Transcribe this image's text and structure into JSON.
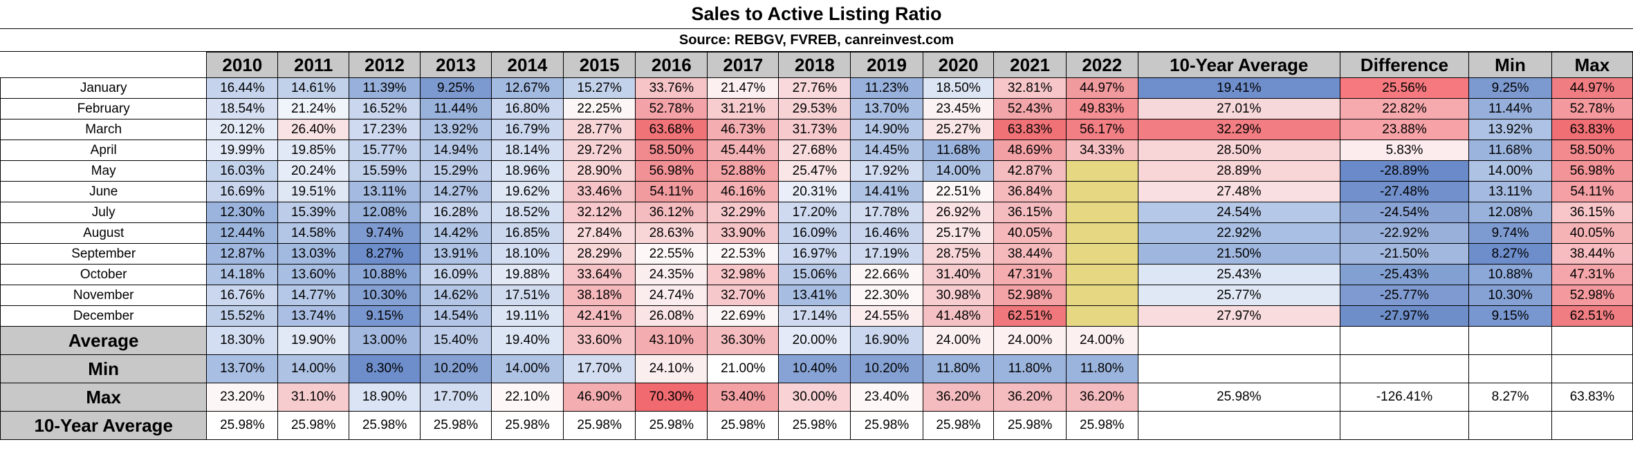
{
  "title": "Sales to Active Listing Ratio",
  "source": "Source: REBGV, FVREB, canreinvest.com",
  "columns": [
    "2010",
    "2011",
    "2012",
    "2013",
    "2014",
    "2015",
    "2016",
    "2017",
    "2018",
    "2019",
    "2020",
    "2021",
    "2022",
    "10-Year Average",
    "Difference",
    "Min",
    "Max"
  ],
  "rows": [
    {
      "label": "January",
      "cells": [
        "16.44%",
        "14.61%",
        "11.39%",
        "9.25%",
        "12.67%",
        "15.27%",
        "33.76%",
        "21.47%",
        "27.76%",
        "11.23%",
        "18.50%",
        "32.81%",
        "44.97%",
        "19.41%",
        "25.56%",
        "9.25%",
        "44.97%"
      ],
      "colors": [
        "#c5d4ec",
        "#c1d1ea",
        "#98b1dc",
        "#7c99d0",
        "#a2b9e0",
        "#c3d2eb",
        "#f6c4c7",
        "#fdf0f1",
        "#f9d9db",
        "#98b1dc",
        "#dce5f4",
        "#f6c6c9",
        "#f19a9e",
        "#6f8ecc",
        "#f5797e",
        "#7c99d0",
        "#f07d82"
      ]
    },
    {
      "label": "February",
      "cells": [
        "18.54%",
        "21.24%",
        "16.52%",
        "11.44%",
        "16.80%",
        "22.25%",
        "52.78%",
        "31.21%",
        "29.53%",
        "13.70%",
        "23.45%",
        "52.43%",
        "49.83%",
        "27.01%",
        "22.82%",
        "11.44%",
        "52.78%"
      ],
      "colors": [
        "#d6e0f2",
        "#f0f4fb",
        "#c9d6ee",
        "#99b2dc",
        "#cad7ee",
        "#fcf6f7",
        "#f3a3a7",
        "#f7cdd0",
        "#f8d3d6",
        "#a8bee2",
        "#fbf2f3",
        "#f3a6aa",
        "#f48f93",
        "#f7d8da",
        "#f7aaae",
        "#96afdb",
        "#f49a9e"
      ]
    },
    {
      "label": "March",
      "cells": [
        "20.12%",
        "26.40%",
        "17.23%",
        "13.92%",
        "16.79%",
        "28.77%",
        "63.68%",
        "46.73%",
        "31.73%",
        "14.90%",
        "25.27%",
        "63.83%",
        "56.17%",
        "32.29%",
        "23.88%",
        "13.92%",
        "63.83%"
      ],
      "colors": [
        "#e6ecf7",
        "#fae3e4",
        "#cfdaf0",
        "#adc2e4",
        "#cad7ee",
        "#f8d6d8",
        "#f07378",
        "#f4aeb1",
        "#f7cbce",
        "#b5c8e7",
        "#fae6e7",
        "#f07276",
        "#f27f84",
        "#f27d82",
        "#f6a2a6",
        "#adc2e4",
        "#f06f74"
      ]
    },
    {
      "label": "April",
      "cells": [
        "19.99%",
        "19.85%",
        "15.77%",
        "14.94%",
        "18.14%",
        "29.72%",
        "58.50%",
        "45.44%",
        "27.68%",
        "14.45%",
        "11.68%",
        "48.69%",
        "34.33%",
        "28.50%",
        "5.83%",
        "11.68%",
        "58.50%"
      ],
      "colors": [
        "#e4eaf7",
        "#e2e9f6",
        "#c2d1eb",
        "#b6c8e7",
        "#d4def2",
        "#f8d3d5",
        "#f18a8e",
        "#f4b3b6",
        "#f9dcde",
        "#b0c4e5",
        "#9bb4dd",
        "#f3a0a4",
        "#f6c0c3",
        "#f8d5d7",
        "#fcecee",
        "#9bb4dd",
        "#f38a8e"
      ]
    },
    {
      "label": "May",
      "cells": [
        "16.03%",
        "20.24%",
        "15.59%",
        "15.29%",
        "18.96%",
        "28.90%",
        "56.98%",
        "52.88%",
        "25.47%",
        "17.92%",
        "14.00%",
        "42.87%",
        "",
        "28.89%",
        "-28.89%",
        "14.00%",
        "56.98%"
      ],
      "colors": [
        "#c4d3ec",
        "#e7edf8",
        "#c0cfea",
        "#bccce9",
        "#dbe4f4",
        "#f8d6d8",
        "#f19195",
        "#f3a2a6",
        "#fae6e7",
        "#d3ddf1",
        "#aec2e4",
        "#f5bcbf",
        "#e6d883",
        "#f8d5d7",
        "#6a8ac9",
        "#aec2e4",
        "#f39598"
      ]
    },
    {
      "label": "June",
      "cells": [
        "16.69%",
        "19.51%",
        "13.11%",
        "14.27%",
        "19.62%",
        "33.46%",
        "54.11%",
        "46.16%",
        "20.31%",
        "14.41%",
        "22.51%",
        "36.84%",
        "",
        "27.48%",
        "-27.48%",
        "13.11%",
        "54.11%"
      ],
      "colors": [
        "#c9d6ee",
        "#dfe7f5",
        "#a4bae0",
        "#b1c4e5",
        "#e0e8f6",
        "#f6c4c7",
        "#f29b9f",
        "#f4b0b3",
        "#e9eef8",
        "#afc3e5",
        "#fdf7f8",
        "#f5b9bc",
        "#e6d883",
        "#f9dfe1",
        "#7190cc",
        "#a4bae0",
        "#f4a0a4"
      ]
    },
    {
      "label": "July",
      "cells": [
        "12.30%",
        "15.39%",
        "12.08%",
        "16.28%",
        "18.52%",
        "32.12%",
        "36.12%",
        "32.29%",
        "17.20%",
        "17.78%",
        "26.92%",
        "36.15%",
        "",
        "24.54%",
        "-24.54%",
        "12.08%",
        "36.15%"
      ],
      "colors": [
        "#9bb4dd",
        "#bdcde9",
        "#99b2dc",
        "#c6d4ed",
        "#d6e0f3",
        "#f7c9cc",
        "#f5bcbf",
        "#f7c9cc",
        "#cfdaf0",
        "#d2dcf1",
        "#fae1e3",
        "#f5bcbf",
        "#e6d883",
        "#b6c8e7",
        "#8aa3d5",
        "#99b2dc",
        "#f8c6c9"
      ]
    },
    {
      "label": "August",
      "cells": [
        "12.44%",
        "14.58%",
        "9.74%",
        "14.42%",
        "16.85%",
        "27.84%",
        "28.63%",
        "33.90%",
        "16.09%",
        "16.46%",
        "25.17%",
        "40.05%",
        "",
        "22.92%",
        "-22.92%",
        "9.74%",
        "40.05%"
      ],
      "colors": [
        "#9cb5dd",
        "#b3c6e6",
        "#7e9bd1",
        "#b0c4e5",
        "#cbd8ee",
        "#f9dadc",
        "#f8d6d8",
        "#f6c3c6",
        "#c5d3ec",
        "#c8d5ed",
        "#fae6e7",
        "#f5b7ba",
        "#e6d883",
        "#a9bfe3",
        "#99b0da",
        "#7e9bd1",
        "#f6b3b6"
      ]
    },
    {
      "label": "September",
      "cells": [
        "12.87%",
        "13.03%",
        "8.27%",
        "13.91%",
        "18.10%",
        "28.29%",
        "22.55%",
        "22.53%",
        "16.97%",
        "17.19%",
        "28.75%",
        "38.44%",
        "",
        "21.50%",
        "-21.50%",
        "8.27%",
        "38.44%"
      ],
      "colors": [
        "#a0b7df",
        "#a2b9e0",
        "#6d8dcb",
        "#adc2e4",
        "#d4def2",
        "#f8d7d9",
        "#fdf7f8",
        "#fdf7f8",
        "#ccd8ef",
        "#cfdaf0",
        "#f8d6d8",
        "#f5b9bc",
        "#e6d883",
        "#9fb6de",
        "#a3b8df",
        "#6d8dcb",
        "#f7bcbf"
      ]
    },
    {
      "label": "October",
      "cells": [
        "14.18%",
        "13.60%",
        "10.88%",
        "16.09%",
        "19.88%",
        "33.64%",
        "24.35%",
        "32.98%",
        "15.06%",
        "22.66%",
        "31.40%",
        "47.31%",
        "",
        "25.43%",
        "-25.43%",
        "10.88%",
        "47.31%"
      ],
      "colors": [
        "#afc3e5",
        "#a8bee2",
        "#8ca8d8",
        "#c5d3ec",
        "#e3eaf6",
        "#f6c4c7",
        "#fbeeef",
        "#f7c7ca",
        "#b8c9e7",
        "#fdf6f7",
        "#f7cccf",
        "#f4acaf",
        "#e6d883",
        "#dde6f5",
        "#82a0d2",
        "#8ca8d8",
        "#f5a6aa"
      ]
    },
    {
      "label": "November",
      "cells": [
        "16.76%",
        "14.77%",
        "10.30%",
        "14.62%",
        "17.51%",
        "38.18%",
        "24.74%",
        "32.70%",
        "13.41%",
        "22.30%",
        "30.98%",
        "52.98%",
        "",
        "25.77%",
        "-25.77%",
        "10.30%",
        "52.98%"
      ],
      "colors": [
        "#cad7ee",
        "#b5c8e7",
        "#86a2d5",
        "#b3c6e6",
        "#d0dbf0",
        "#f5b8bb",
        "#fbecee",
        "#f7c8cb",
        "#a7bde2",
        "#fdf7f8",
        "#f7cdd0",
        "#f3a2a6",
        "#e6d883",
        "#e0e8f6",
        "#7f9ad1",
        "#86a2d5",
        "#f49a9e"
      ]
    },
    {
      "label": "December",
      "cells": [
        "15.52%",
        "13.74%",
        "9.15%",
        "14.54%",
        "19.11%",
        "42.41%",
        "26.08%",
        "22.69%",
        "17.14%",
        "24.55%",
        "41.48%",
        "62.51%",
        "",
        "27.97%",
        "-27.97%",
        "9.15%",
        "62.51%"
      ],
      "colors": [
        "#bfcfea",
        "#aabfe3",
        "#7896cf",
        "#b2c5e6",
        "#dce5f4",
        "#f5bdc0",
        "#fae4e5",
        "#fdf6f7",
        "#cfdaf0",
        "#fbecee",
        "#f5c0c3",
        "#f0787c",
        "#e6d883",
        "#f9dcde",
        "#6e8eca",
        "#7896cf",
        "#f07d82"
      ]
    }
  ],
  "stats": [
    {
      "label": "Average",
      "cells": [
        "18.30%",
        "19.90%",
        "13.00%",
        "15.40%",
        "19.40%",
        "33.60%",
        "43.10%",
        "36.30%",
        "20.00%",
        "16.90%",
        "24.00%",
        "24.00%",
        "24.00%",
        "",
        "",
        "",
        ""
      ],
      "colors": [
        "#d4def2",
        "#e2e9f6",
        "#a3b9e0",
        "#bdcde9",
        "#dde6f5",
        "#f6c4c7",
        "#f3adb0",
        "#f5bcbf",
        "#e4eaf7",
        "#cad7ee",
        "#fcf0f1",
        "#fcf0f1",
        "#fcf0f1",
        "#ffffff",
        "#ffffff",
        "#ffffff",
        "#ffffff"
      ]
    },
    {
      "label": "Min",
      "cells": [
        "13.70%",
        "14.00%",
        "8.30%",
        "10.20%",
        "14.00%",
        "17.70%",
        "24.10%",
        "21.00%",
        "10.40%",
        "10.20%",
        "11.80%",
        "11.80%",
        "11.80%",
        "",
        "",
        "",
        ""
      ],
      "colors": [
        "#a8bee2",
        "#aec2e4",
        "#6d8dcb",
        "#85a1d4",
        "#aec2e4",
        "#d3ddf1",
        "#fbeeef",
        "#ffffff",
        "#87a3d5",
        "#85a1d4",
        "#9bb4dd",
        "#9bb4dd",
        "#9bb4dd",
        "#ffffff",
        "#ffffff",
        "#ffffff",
        "#ffffff"
      ]
    },
    {
      "label": "Max",
      "cells": [
        "23.20%",
        "31.10%",
        "18.90%",
        "17.70%",
        "22.10%",
        "46.90%",
        "70.30%",
        "53.40%",
        "30.00%",
        "23.40%",
        "36.20%",
        "36.20%",
        "36.20%",
        "25.98%",
        "-126.41%",
        "8.27%",
        "63.83%"
      ],
      "colors": [
        "#fdf6f7",
        "#f7cccf",
        "#dbe4f4",
        "#d3ddf1",
        "#fdf7f8",
        "#f4aeb1",
        "#f06a6f",
        "#f3a1a5",
        "#f8d2d5",
        "#fdf7f8",
        "#f5bcbf",
        "#f5bcbf",
        "#f5bcbf",
        "#ffffff",
        "#ffffff",
        "#ffffff",
        "#ffffff"
      ]
    },
    {
      "label": "10-Year Average",
      "cells": [
        "25.98%",
        "25.98%",
        "25.98%",
        "25.98%",
        "25.98%",
        "25.98%",
        "25.98%",
        "25.98%",
        "25.98%",
        "25.98%",
        "25.98%",
        "25.98%",
        "25.98%",
        "",
        "",
        "",
        ""
      ],
      "colors": [
        "#ffffff",
        "#ffffff",
        "#ffffff",
        "#ffffff",
        "#ffffff",
        "#ffffff",
        "#ffffff",
        "#ffffff",
        "#ffffff",
        "#ffffff",
        "#ffffff",
        "#ffffff",
        "#ffffff",
        "#ffffff",
        "#ffffff",
        "#ffffff",
        "#ffffff"
      ]
    }
  ]
}
